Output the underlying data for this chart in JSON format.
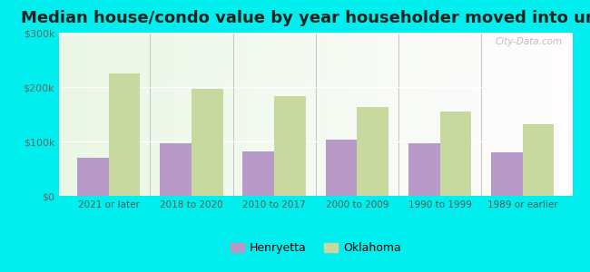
{
  "title": "Median house/condo value by year householder moved into unit",
  "categories": [
    "2021 or later",
    "2018 to 2020",
    "2010 to 2017",
    "2000 to 2009",
    "1990 to 1999",
    "1989 or earlier"
  ],
  "henryetta_values": [
    70000,
    97000,
    82000,
    103000,
    97000,
    80000
  ],
  "oklahoma_values": [
    225000,
    197000,
    183000,
    163000,
    155000,
    132000
  ],
  "henryetta_color": "#b89ac8",
  "oklahoma_color": "#c8d9a0",
  "background_color": "#00eeee",
  "ylim": [
    0,
    300000
  ],
  "yticks": [
    0,
    100000,
    200000,
    300000
  ],
  "ytick_labels": [
    "$0",
    "$100k",
    "$200k",
    "$300k"
  ],
  "legend_labels": [
    "Henryetta",
    "Oklahoma"
  ],
  "title_fontsize": 13,
  "bar_width": 0.38,
  "watermark": "City-Data.com"
}
